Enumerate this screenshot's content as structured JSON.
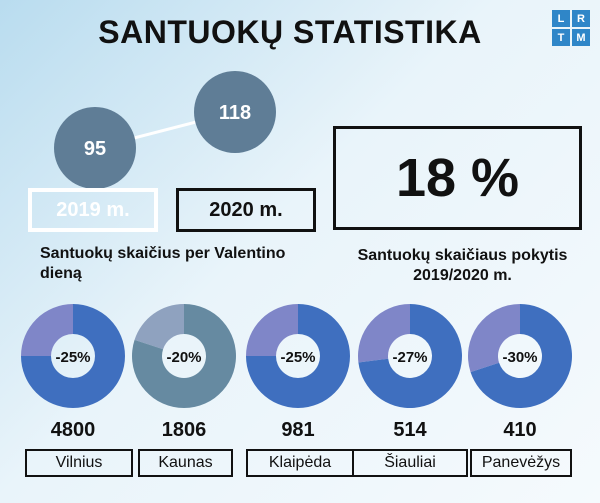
{
  "header": {
    "title": "SANTUOKŲ STATISTIKA",
    "logo_letters": [
      "L",
      "R",
      "T",
      "M"
    ]
  },
  "valentine": {
    "year_2019_label": "2019 m.",
    "year_2020_label": "2020 m.",
    "value_2019": "95",
    "value_2020": "118",
    "caption": "Santuokų skaičius per Valentino dieną"
  },
  "change": {
    "percent_label": "18 %",
    "caption_line1": "Santuokų skaičiaus pokytis",
    "caption_line2": "2019/2020 m."
  },
  "chart_data": [
    {
      "type": "bar",
      "categories": [
        "2019 m.",
        "2020 m."
      ],
      "values": [
        95,
        118
      ]
    },
    {
      "type": "pie",
      "categories": [
        "Vilnius",
        "Kaunas",
        "Klaipėda",
        "Šiauliai",
        "Panevėžys"
      ],
      "counts": [
        4800,
        1806,
        981,
        514,
        410
      ],
      "count_labels": [
        "4800",
        "1806",
        "981",
        "514",
        "410"
      ],
      "change_percent": [
        -25,
        -20,
        -25,
        -27,
        -30
      ],
      "change_labels": [
        "-25%",
        "-20%",
        "-25%",
        "-27%",
        "-30%"
      ]
    }
  ],
  "colors": {
    "circle": "#5f7d96",
    "donut_main": "#3f6fbf",
    "donut_light": "#7f86c8",
    "kaunas_main": "#668aa1",
    "kaunas_light": "#8fa2bf"
  }
}
